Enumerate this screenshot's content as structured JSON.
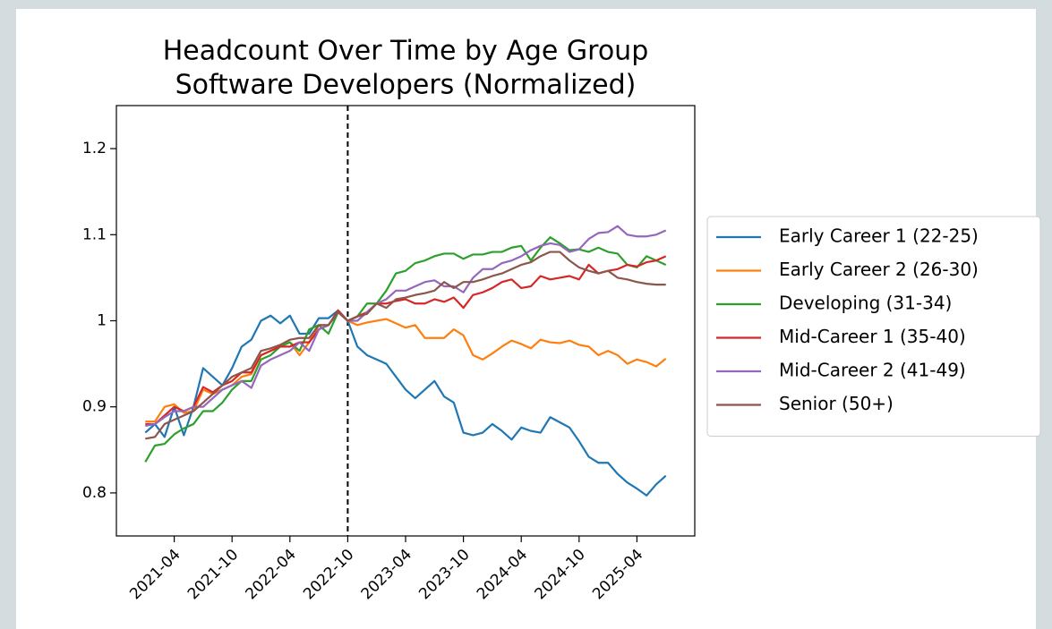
{
  "chart_data": {
    "type": "line",
    "title": "Headcount Over Time by Age Group",
    "subtitle": "Software Developers (Normalized)",
    "x": [
      "2021-01",
      "2021-02",
      "2021-03",
      "2021-04",
      "2021-05",
      "2021-06",
      "2021-07",
      "2021-08",
      "2021-09",
      "2021-10",
      "2021-11",
      "2021-12",
      "2022-01",
      "2022-02",
      "2022-03",
      "2022-04",
      "2022-05",
      "2022-06",
      "2022-07",
      "2022-08",
      "2022-09",
      "2022-10",
      "2022-11",
      "2022-12",
      "2023-01",
      "2023-02",
      "2023-03",
      "2023-04",
      "2023-05",
      "2023-06",
      "2023-07",
      "2023-08",
      "2023-09",
      "2023-10",
      "2023-11",
      "2023-12",
      "2024-01",
      "2024-02",
      "2024-03",
      "2024-04",
      "2024-05",
      "2024-06",
      "2024-07",
      "2024-08",
      "2024-09",
      "2024-10",
      "2024-11",
      "2024-12",
      "2025-01",
      "2025-02",
      "2025-03",
      "2025-04",
      "2025-05",
      "2025-06",
      "2025-07"
    ],
    "xlim": [
      "2020-10",
      "2025-10"
    ],
    "xticks": [
      "2021-04",
      "2021-10",
      "2022-04",
      "2022-10",
      "2023-04",
      "2023-10",
      "2024-04",
      "2024-10",
      "2025-04"
    ],
    "ylim": [
      0.75,
      1.25
    ],
    "yticks": [
      0.8,
      0.9,
      1.0,
      1.1,
      1.2
    ],
    "yticks_labels": null,
    "vline": "2022-10",
    "legend": "outside-right",
    "series": [
      {
        "name": "Early Career 1 (22-25)",
        "color": "#1f77b4",
        "values": [
          0.87,
          0.88,
          0.865,
          0.9,
          0.867,
          0.9,
          0.945,
          0.935,
          0.925,
          0.945,
          0.97,
          0.978,
          1.0,
          1.006,
          0.997,
          1.006,
          0.985,
          0.985,
          1.003,
          1.003,
          1.012,
          1.0,
          0.97,
          0.96,
          0.955,
          0.95,
          0.935,
          0.92,
          0.91,
          0.92,
          0.93,
          0.912,
          0.905,
          0.87,
          0.867,
          0.87,
          0.88,
          0.872,
          0.862,
          0.876,
          0.872,
          0.87,
          0.888,
          0.882,
          0.876,
          0.86,
          0.842,
          0.835,
          0.835,
          0.822,
          0.812,
          0.805,
          0.797,
          0.81,
          0.82
        ]
      },
      {
        "name": "Early Career 2 (26-30)",
        "color": "#ff7f0e",
        "values": [
          0.883,
          0.883,
          0.9,
          0.903,
          0.893,
          0.895,
          0.92,
          0.915,
          0.92,
          0.925,
          0.935,
          0.938,
          0.96,
          0.965,
          0.97,
          0.975,
          0.96,
          0.975,
          0.995,
          0.995,
          1.01,
          1.0,
          0.995,
          0.998,
          1.0,
          1.002,
          0.997,
          0.992,
          0.995,
          0.98,
          0.98,
          0.98,
          0.99,
          0.983,
          0.96,
          0.955,
          0.962,
          0.97,
          0.977,
          0.973,
          0.968,
          0.978,
          0.975,
          0.974,
          0.977,
          0.972,
          0.97,
          0.96,
          0.965,
          0.96,
          0.95,
          0.955,
          0.952,
          0.947,
          0.956
        ]
      },
      {
        "name": "Developing (31-34)",
        "color": "#2ca02c",
        "values": [
          0.836,
          0.855,
          0.857,
          0.868,
          0.875,
          0.88,
          0.895,
          0.895,
          0.905,
          0.92,
          0.93,
          0.93,
          0.955,
          0.96,
          0.97,
          0.975,
          0.965,
          0.99,
          0.995,
          0.985,
          1.01,
          1.0,
          1.005,
          1.02,
          1.02,
          1.035,
          1.055,
          1.058,
          1.067,
          1.07,
          1.075,
          1.078,
          1.078,
          1.072,
          1.077,
          1.077,
          1.08,
          1.08,
          1.085,
          1.087,
          1.07,
          1.085,
          1.097,
          1.09,
          1.082,
          1.083,
          1.08,
          1.085,
          1.08,
          1.078,
          1.065,
          1.062,
          1.075,
          1.07,
          1.065
        ]
      },
      {
        "name": "Mid-Career 1 (35-40)",
        "color": "#d62728",
        "values": [
          0.88,
          0.88,
          0.89,
          0.9,
          0.895,
          0.9,
          0.923,
          0.917,
          0.925,
          0.93,
          0.94,
          0.94,
          0.96,
          0.965,
          0.97,
          0.97,
          0.975,
          0.975,
          0.99,
          0.995,
          1.012,
          1.0,
          1.005,
          1.01,
          1.02,
          1.02,
          1.023,
          1.025,
          1.02,
          1.02,
          1.025,
          1.022,
          1.027,
          1.015,
          1.03,
          1.033,
          1.038,
          1.045,
          1.048,
          1.038,
          1.04,
          1.052,
          1.048,
          1.05,
          1.052,
          1.048,
          1.065,
          1.055,
          1.058,
          1.06,
          1.065,
          1.063,
          1.068,
          1.07,
          1.075
        ]
      },
      {
        "name": "Mid-Career 2 (41-49)",
        "color": "#9467bd",
        "values": [
          0.878,
          0.88,
          0.888,
          0.895,
          0.895,
          0.9,
          0.9,
          0.91,
          0.92,
          0.925,
          0.93,
          0.922,
          0.948,
          0.955,
          0.96,
          0.965,
          0.975,
          0.965,
          0.99,
          0.995,
          1.01,
          1.0,
          1.0,
          1.01,
          1.02,
          1.025,
          1.035,
          1.035,
          1.04,
          1.045,
          1.047,
          1.04,
          1.04,
          1.033,
          1.05,
          1.06,
          1.06,
          1.067,
          1.07,
          1.075,
          1.082,
          1.087,
          1.09,
          1.088,
          1.08,
          1.083,
          1.095,
          1.102,
          1.103,
          1.11,
          1.1,
          1.098,
          1.098,
          1.1,
          1.105
        ]
      },
      {
        "name": "Senior (50+)",
        "color": "#8c564b",
        "values": [
          0.863,
          0.865,
          0.88,
          0.885,
          0.89,
          0.895,
          0.905,
          0.915,
          0.925,
          0.935,
          0.94,
          0.945,
          0.965,
          0.968,
          0.972,
          0.978,
          0.98,
          0.98,
          0.995,
          0.995,
          1.01,
          1.0,
          1.005,
          1.008,
          1.02,
          1.015,
          1.025,
          1.027,
          1.03,
          1.032,
          1.035,
          1.045,
          1.038,
          1.045,
          1.045,
          1.048,
          1.052,
          1.055,
          1.06,
          1.065,
          1.068,
          1.075,
          1.08,
          1.08,
          1.07,
          1.062,
          1.058,
          1.055,
          1.058,
          1.05,
          1.048,
          1.045,
          1.043,
          1.042,
          1.042
        ]
      }
    ]
  }
}
